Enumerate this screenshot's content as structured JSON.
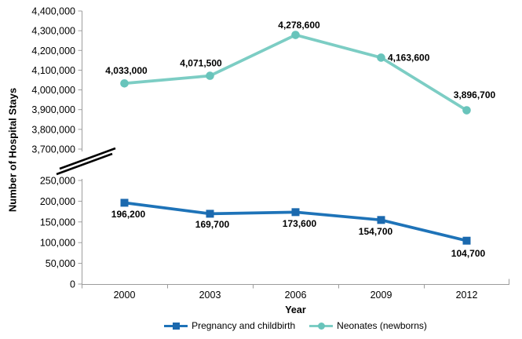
{
  "chart_data": {
    "type": "line",
    "title": "",
    "xlabel": "Year",
    "ylabel": "Number of Hospital Stays",
    "categories": [
      "2000",
      "2003",
      "2006",
      "2009",
      "2012"
    ],
    "grid": false,
    "legend_position": "bottom",
    "axis_break": true,
    "axis_color": "#9C9C9C",
    "break_mark_color": "#000000",
    "text_color": "#000000",
    "y_axis_segments": [
      {
        "id": "upper",
        "range": [
          3700000,
          4400000
        ],
        "tick_step": 100000,
        "tick_labels": [
          "4,400,000",
          "4,300,000",
          "4,200,000",
          "4,100,000",
          "4,000,000",
          "3,900,000",
          "3,800,000",
          "3,700,000"
        ]
      },
      {
        "id": "lower",
        "range": [
          0,
          250000
        ],
        "tick_step": 50000,
        "tick_labels": [
          "250,000",
          "200,000",
          "150,000",
          "100,000",
          "50,000",
          "0"
        ]
      }
    ],
    "series": [
      {
        "name": "Pregnancy and childbirth",
        "segment": "lower",
        "color": "#1E73B8",
        "marker": "square",
        "marker_color": "#1B69AE",
        "values": [
          196200,
          169700,
          173600,
          154700,
          104700
        ],
        "labels": [
          "196,200",
          "169,700",
          "173,600",
          "154,700",
          "104,700"
        ]
      },
      {
        "name": "Neonates (newborns)",
        "segment": "upper",
        "color": "#7CCDC4",
        "marker": "circle",
        "marker_color": "#68C4BB",
        "values": [
          4033000,
          4071500,
          4278600,
          4163600,
          3896700
        ],
        "labels": [
          "4,033,000",
          "4,071,500",
          "4,278,600",
          "4,163,600",
          "3,896,700"
        ]
      }
    ]
  }
}
